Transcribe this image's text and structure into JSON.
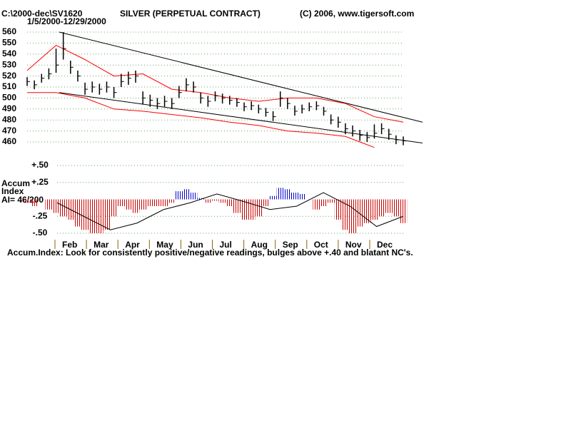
{
  "chart_data": {
    "type": "stock",
    "title": "SILVER (PERPETUAL CONTRACT)",
    "file": "C:\\2000-dec\\SV1620",
    "copyright": "(C) 2006, www.tigersoft.com",
    "date_range": "1/5/2000-12/29/2000",
    "categories": [
      "Feb",
      "Mar",
      "Apr",
      "May",
      "Jun",
      "Jul",
      "Aug",
      "Sep",
      "Oct",
      "Nov",
      "Dec"
    ],
    "ylim": [
      460,
      560
    ],
    "yticks": [
      460,
      470,
      480,
      490,
      500,
      510,
      520,
      530,
      540,
      550,
      560
    ],
    "grid": true,
    "grid_color": "#66aa66",
    "bar_color": "#000000",
    "high": [
      519,
      516,
      522,
      527,
      545,
      560,
      534,
      525,
      514,
      515,
      513,
      515,
      510,
      522,
      524,
      525,
      506,
      503,
      500,
      502,
      500,
      511,
      518,
      515,
      505,
      502,
      506,
      504,
      502,
      500,
      496,
      497,
      494,
      491,
      488,
      506,
      500,
      493,
      494,
      496,
      497,
      492,
      485,
      483,
      477,
      475,
      471,
      469,
      476,
      477,
      472,
      466,
      465
    ],
    "low": [
      511,
      508,
      514,
      517,
      523,
      535,
      522,
      515,
      503,
      505,
      503,
      505,
      500,
      510,
      512,
      514,
      494,
      492,
      490,
      492,
      490,
      500,
      506,
      505,
      495,
      492,
      497,
      495,
      494,
      492,
      488,
      489,
      486,
      483,
      479,
      492,
      490,
      484,
      486,
      488,
      489,
      484,
      476,
      473,
      467,
      465,
      461,
      460,
      463,
      467,
      462,
      458,
      457
    ],
    "close": [
      515,
      512,
      518,
      522,
      530,
      545,
      528,
      520,
      508,
      510,
      508,
      510,
      505,
      515,
      518,
      520,
      500,
      498,
      495,
      497,
      495,
      505,
      512,
      510,
      500,
      497,
      502,
      500,
      498,
      496,
      492,
      493,
      490,
      487,
      483,
      500,
      495,
      488,
      490,
      492,
      493,
      488,
      480,
      478,
      472,
      470,
      466,
      464,
      468,
      472,
      467,
      462,
      461
    ],
    "bands": [
      {
        "color": "#ff0000",
        "values": [
          525,
          548,
          535,
          520,
          522,
          508,
          505,
          500,
          497,
          500,
          500,
          495,
          483,
          478
        ]
      },
      {
        "color": "#ff0000",
        "values": [
          505,
          505,
          500,
          490,
          488,
          485,
          482,
          478,
          475,
          470,
          468,
          465,
          455,
          null
        ]
      }
    ],
    "trendlines": [
      {
        "color": "#000000",
        "values": [
          560,
          478
        ]
      },
      {
        "color": "#000000",
        "values": [
          505,
          459
        ]
      }
    ],
    "accum_label": [
      "Accum",
      "Index"
    ],
    "accum_summary": "AI= 46/200",
    "accum_ylim": [
      -0.5,
      0.5
    ],
    "accum_ticks": [
      {
        "value": 0.5,
        "label": "+.50"
      },
      {
        "value": 0.25,
        "label": "+.25"
      },
      {
        "value": -0.25,
        "label": "-.25"
      },
      {
        "value": -0.5,
        "label": "-.50"
      }
    ],
    "accum_positive_color": "#0000cc",
    "accum_negative_color": "#cc0000",
    "accum_values": [
      -0.05,
      -0.1,
      0,
      -0.15,
      -0.2,
      -0.25,
      -0.3,
      -0.4,
      -0.45,
      -0.5,
      -0.5,
      -0.45,
      -0.25,
      -0.1,
      -0.15,
      -0.2,
      -0.15,
      -0.1,
      -0.1,
      -0.1,
      -0.05,
      0.12,
      0.15,
      0.1,
      0.02,
      -0.05,
      -0.02,
      -0.05,
      -0.1,
      -0.2,
      -0.3,
      -0.3,
      -0.25,
      -0.1,
      0.05,
      0.17,
      0.15,
      0.1,
      0.08,
      0,
      -0.15,
      -0.1,
      -0.05,
      -0.3,
      -0.45,
      -0.5,
      -0.4,
      -0.35,
      -0.3,
      -0.25,
      -0.2,
      -0.25,
      -0.35
    ],
    "accum_ma": {
      "color": "#000000",
      "values": [
        -0.05,
        -0.25,
        -0.45,
        -0.35,
        -0.15,
        -0.05,
        0.08,
        -0.03,
        -0.15,
        -0.1,
        0.1,
        -0.1,
        -0.4,
        -0.25
      ]
    },
    "footnote": "Accum.Index: Look for consistently positive/negative readings, bulges above +.40 and blatant NC's."
  }
}
